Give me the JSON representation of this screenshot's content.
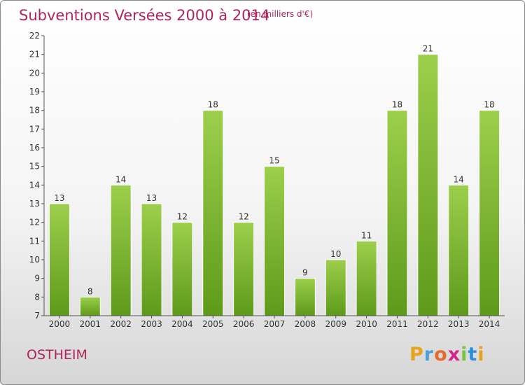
{
  "header": {
    "title": "Subventions Versées 2000 à 2014",
    "unit": "(en milliers d'€)"
  },
  "footer": {
    "commune": "OSTHEIM",
    "logo_letters": [
      "P",
      "r",
      "o",
      "x",
      "i",
      "t",
      "i"
    ],
    "logo_colors": [
      "#e8a21c",
      "#4a9fd6",
      "#e86a2a",
      "#d6268a",
      "#7cc242",
      "#2e8fd6",
      "#e8a21c"
    ]
  },
  "chart_data": {
    "type": "bar",
    "title": "Subventions Versées 2000 à 2014",
    "subtitle": "(en milliers d'€)",
    "categories": [
      "2000",
      "2001",
      "2002",
      "2003",
      "2004",
      "2005",
      "2006",
      "2007",
      "2008",
      "2009",
      "2010",
      "2011",
      "2012",
      "2013",
      "2014"
    ],
    "values": [
      13,
      8,
      14,
      13,
      12,
      18,
      12,
      15,
      9,
      10,
      11,
      18,
      21,
      14,
      18
    ],
    "ylim": [
      7,
      22
    ],
    "yticks": [
      7,
      8,
      9,
      10,
      11,
      12,
      13,
      14,
      15,
      16,
      17,
      18,
      19,
      20,
      21,
      22
    ],
    "grid": false,
    "bar_color_top": "#9ccf4c",
    "bar_color_bottom": "#5e9a1a"
  }
}
